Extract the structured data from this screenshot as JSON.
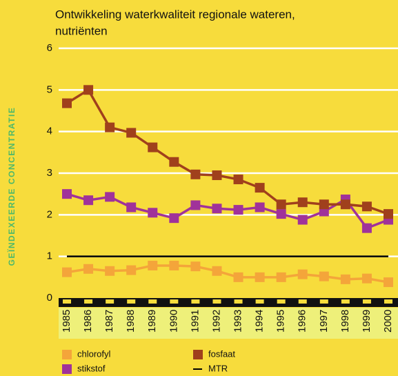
{
  "chart_data": {
    "type": "line",
    "title": "Ontwikkeling waterkwaliteit regionale wateren,",
    "subtitle": "nutriënten",
    "y_label": "GEÏNDEXEERDE CONCENTRATIE",
    "categories": [
      "1985",
      "1986",
      "1987",
      "1988",
      "1989",
      "1990",
      "1991",
      "1992",
      "1993",
      "1994",
      "1995",
      "1996",
      "1997",
      "1998",
      "1999",
      "2000"
    ],
    "series": [
      {
        "name": "chlorofyl",
        "color": "#f4a53a",
        "values": [
          0.62,
          0.7,
          0.65,
          0.67,
          0.78,
          0.78,
          0.76,
          0.65,
          0.5,
          0.5,
          0.5,
          0.57,
          0.52,
          0.45,
          0.47,
          0.38
        ]
      },
      {
        "name": "stikstof",
        "color": "#a0329a",
        "values": [
          2.5,
          2.35,
          2.43,
          2.18,
          2.05,
          1.92,
          2.23,
          2.15,
          2.12,
          2.18,
          2.02,
          1.88,
          2.08,
          2.37,
          1.68,
          1.88
        ]
      },
      {
        "name": "fosfaat",
        "color": "#a0401c",
        "values": [
          4.68,
          5.0,
          4.1,
          3.97,
          3.62,
          3.27,
          2.97,
          2.95,
          2.85,
          2.65,
          2.25,
          2.3,
          2.25,
          2.25,
          2.2,
          2.02
        ]
      }
    ],
    "reference_line": {
      "name": "MTR",
      "value": 1,
      "color": "#000000"
    },
    "ylim": [
      0,
      6
    ],
    "yticks": [
      0,
      1,
      2,
      3,
      4,
      5,
      6
    ],
    "grid": true
  }
}
